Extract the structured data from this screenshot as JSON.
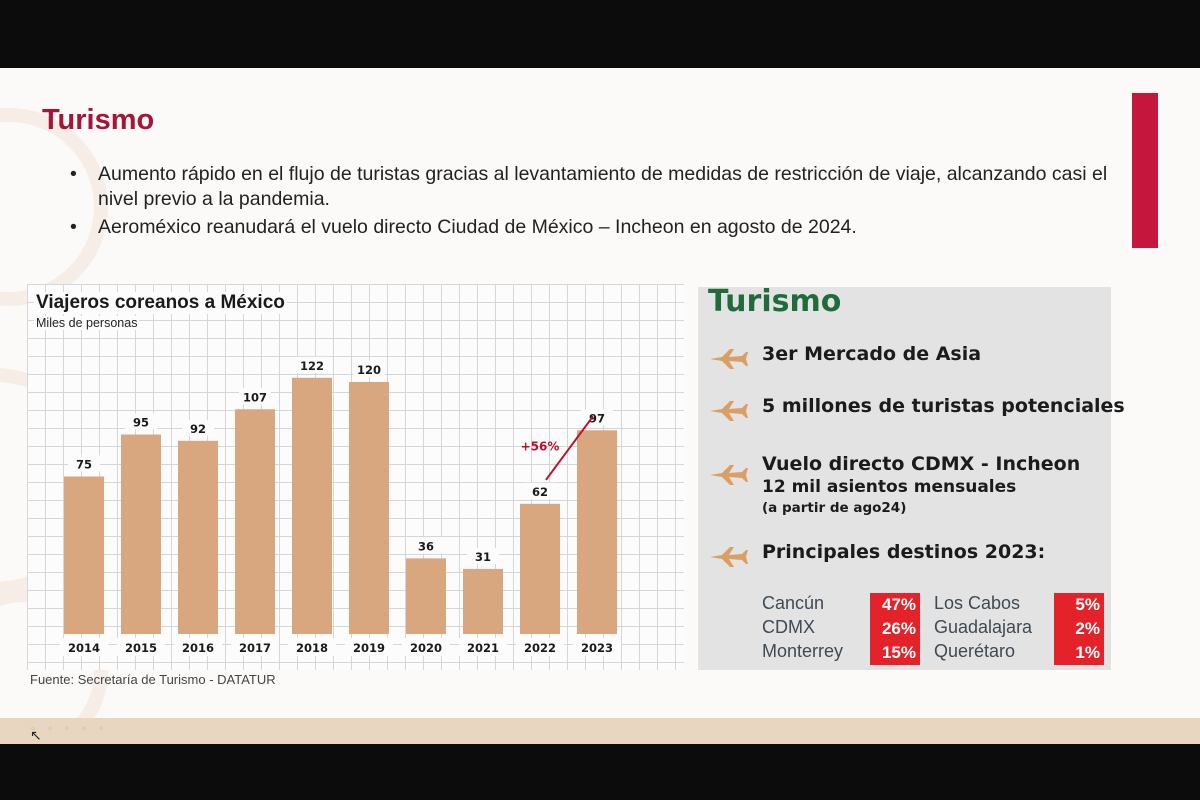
{
  "slide": {
    "title": "Turismo",
    "bullets": [
      "Aumento rápido en el flujo de turistas gracias al levantamiento de medidas de restricción de viaje, alcanzando casi el nivel previo a la pandemia.",
      "Aeroméxico reanudará el vuelo directo Ciudad de México – Incheon en agosto de 2024."
    ],
    "accent_color": "#a6143a"
  },
  "chart_data": {
    "type": "bar",
    "title": "Viajeros coreanos a México",
    "subtitle": "Miles de personas",
    "categories": [
      "2014",
      "2015",
      "2016",
      "2017",
      "2018",
      "2019",
      "2020",
      "2021",
      "2022",
      "2023"
    ],
    "values": [
      75,
      95,
      92,
      107,
      122,
      120,
      36,
      31,
      62,
      97
    ],
    "annotation": "+56%",
    "ylim": [
      0,
      130
    ],
    "grid": true,
    "bar_color": "#d8a780",
    "source": "Fuente: Secretaría de Turismo - DATATUR"
  },
  "info": {
    "title": "Turismo",
    "title_color": "#1f6b3c",
    "item1": "3er Mercado de Asia",
    "item2": "5 millones de turistas potenciales",
    "item3": {
      "line1": "Vuelo directo CDMX - Incheon",
      "line2": "12 mil asientos mensuales",
      "line3": "(a partir de ago24)"
    },
    "item4": "Principales destinos 2023:",
    "destinations": [
      {
        "name": "Cancún",
        "pct": "47%"
      },
      {
        "name": "CDMX",
        "pct": "26%"
      },
      {
        "name": "Monterrey",
        "pct": "15%"
      },
      {
        "name": "Los Cabos",
        "pct": "5%"
      },
      {
        "name": "Guadalajara",
        "pct": "2%"
      },
      {
        "name": "Querétaro",
        "pct": "1%"
      }
    ],
    "icon": "airplane-icon",
    "icon_color": "#d9a066",
    "pct_color": "#e3222a"
  }
}
